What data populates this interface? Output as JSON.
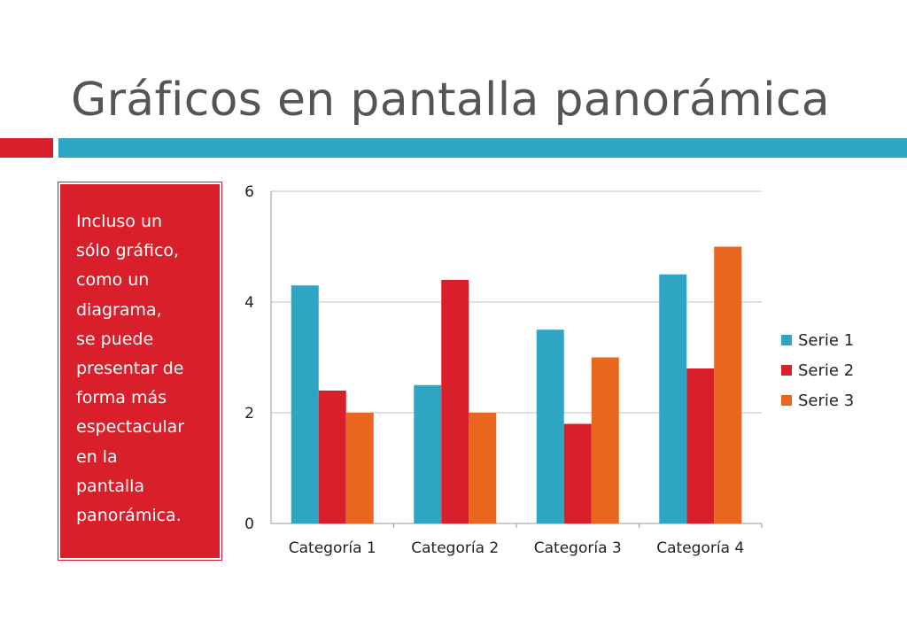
{
  "slide": {
    "title": "Gráficos en pantalla panorámica",
    "text_box": "Incluso un\nsólo gráfico,\ncomo un\ndiagrama,\nse puede\npresentar de\nforma más\nespectacular\nen la\npantalla\npanorámica.",
    "colors": {
      "accent_red": "#d9202a",
      "accent_blue": "#2ea5c3",
      "title": "#555555",
      "text_box_fill": "#d9202a"
    }
  },
  "chart_data": {
    "type": "bar",
    "categories": [
      "Categoría 1",
      "Categoría 2",
      "Categoría 3",
      "Categoría 4"
    ],
    "series": [
      {
        "name": "Serie 1",
        "values": [
          4.3,
          2.5,
          3.5,
          4.5
        ],
        "color": "#2ea5c3"
      },
      {
        "name": "Serie 2",
        "values": [
          2.4,
          4.4,
          1.8,
          2.8
        ],
        "color": "#d9202a"
      },
      {
        "name": "Serie 3",
        "values": [
          2,
          2,
          3,
          5
        ],
        "color": "#e8661e"
      }
    ],
    "ylim": [
      0,
      6
    ],
    "yticks": [
      "0",
      "2",
      "4",
      "6"
    ],
    "xlabel": "",
    "ylabel": "",
    "grid": true,
    "legend_position": "right"
  }
}
